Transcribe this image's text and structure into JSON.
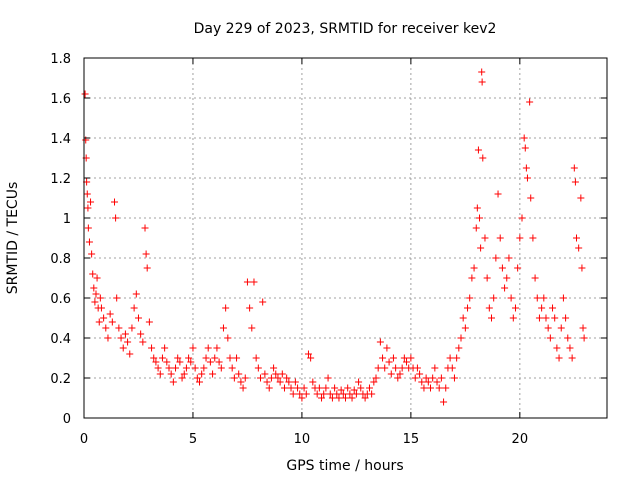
{
  "chart_data": {
    "type": "scatter",
    "title": "Day 229 of 2023, SRMTID for receiver kev2",
    "xlabel": "GPS time / hours",
    "ylabel": "SRMTID / TECUs",
    "xlim": [
      0,
      24
    ],
    "ylim": [
      0,
      1.8
    ],
    "xticks": [
      0,
      5,
      10,
      15,
      20
    ],
    "xtick_labels": [
      "0",
      "5",
      "10",
      "15",
      "20"
    ],
    "yticks": [
      0,
      0.2,
      0.4,
      0.6,
      0.8,
      1.0,
      1.2,
      1.4,
      1.6,
      1.8
    ],
    "ytick_labels": [
      "0",
      "0.2",
      "0.4",
      "0.6",
      "0.8",
      "1",
      "1.2",
      "1.4",
      "1.6",
      "1.8"
    ],
    "grid": true,
    "marker": "+",
    "color": "#ff0000",
    "series": [
      {
        "name": "kev2",
        "points": [
          [
            0.05,
            1.62
          ],
          [
            0.08,
            1.39
          ],
          [
            0.1,
            1.3
          ],
          [
            0.12,
            1.18
          ],
          [
            0.15,
            1.12
          ],
          [
            0.18,
            1.05
          ],
          [
            0.2,
            0.95
          ],
          [
            0.25,
            0.88
          ],
          [
            0.3,
            1.08
          ],
          [
            0.35,
            0.82
          ],
          [
            0.4,
            0.72
          ],
          [
            0.45,
            0.65
          ],
          [
            0.5,
            0.58
          ],
          [
            0.55,
            0.62
          ],
          [
            0.6,
            0.7
          ],
          [
            0.65,
            0.55
          ],
          [
            0.7,
            0.48
          ],
          [
            0.75,
            0.6
          ],
          [
            0.8,
            0.55
          ],
          [
            0.9,
            0.5
          ],
          [
            1.0,
            0.45
          ],
          [
            1.1,
            0.4
          ],
          [
            1.2,
            0.52
          ],
          [
            1.3,
            0.48
          ],
          [
            1.4,
            1.08
          ],
          [
            1.45,
            1.0
          ],
          [
            1.5,
            0.6
          ],
          [
            1.6,
            0.45
          ],
          [
            1.7,
            0.4
          ],
          [
            1.8,
            0.35
          ],
          [
            1.9,
            0.42
          ],
          [
            2.0,
            0.38
          ],
          [
            2.1,
            0.32
          ],
          [
            2.2,
            0.45
          ],
          [
            2.3,
            0.55
          ],
          [
            2.4,
            0.62
          ],
          [
            2.5,
            0.5
          ],
          [
            2.6,
            0.42
          ],
          [
            2.7,
            0.38
          ],
          [
            2.8,
            0.95
          ],
          [
            2.85,
            0.82
          ],
          [
            2.9,
            0.75
          ],
          [
            3.0,
            0.48
          ],
          [
            3.1,
            0.35
          ],
          [
            3.2,
            0.3
          ],
          [
            3.3,
            0.28
          ],
          [
            3.4,
            0.25
          ],
          [
            3.5,
            0.22
          ],
          [
            3.6,
            0.3
          ],
          [
            3.7,
            0.35
          ],
          [
            3.8,
            0.28
          ],
          [
            3.9,
            0.25
          ],
          [
            4.0,
            0.22
          ],
          [
            4.1,
            0.18
          ],
          [
            4.2,
            0.25
          ],
          [
            4.3,
            0.3
          ],
          [
            4.4,
            0.28
          ],
          [
            4.5,
            0.2
          ],
          [
            4.6,
            0.22
          ],
          [
            4.7,
            0.25
          ],
          [
            4.8,
            0.3
          ],
          [
            4.9,
            0.28
          ],
          [
            5.0,
            0.35
          ],
          [
            5.1,
            0.25
          ],
          [
            5.2,
            0.2
          ],
          [
            5.3,
            0.18
          ],
          [
            5.4,
            0.22
          ],
          [
            5.5,
            0.25
          ],
          [
            5.6,
            0.3
          ],
          [
            5.7,
            0.35
          ],
          [
            5.8,
            0.28
          ],
          [
            5.9,
            0.22
          ],
          [
            6.0,
            0.3
          ],
          [
            6.1,
            0.35
          ],
          [
            6.2,
            0.28
          ],
          [
            6.3,
            0.25
          ],
          [
            6.4,
            0.45
          ],
          [
            6.5,
            0.55
          ],
          [
            6.6,
            0.4
          ],
          [
            6.7,
            0.3
          ],
          [
            6.8,
            0.25
          ],
          [
            6.9,
            0.2
          ],
          [
            7.0,
            0.3
          ],
          [
            7.1,
            0.22
          ],
          [
            7.2,
            0.18
          ],
          [
            7.3,
            0.15
          ],
          [
            7.4,
            0.2
          ],
          [
            7.5,
            0.68
          ],
          [
            7.6,
            0.55
          ],
          [
            7.7,
            0.45
          ],
          [
            7.8,
            0.68
          ],
          [
            7.9,
            0.3
          ],
          [
            8.0,
            0.25
          ],
          [
            8.1,
            0.2
          ],
          [
            8.2,
            0.58
          ],
          [
            8.3,
            0.22
          ],
          [
            8.4,
            0.18
          ],
          [
            8.5,
            0.15
          ],
          [
            8.6,
            0.2
          ],
          [
            8.7,
            0.25
          ],
          [
            8.8,
            0.22
          ],
          [
            8.9,
            0.2
          ],
          [
            9.0,
            0.18
          ],
          [
            9.1,
            0.22
          ],
          [
            9.2,
            0.15
          ],
          [
            9.3,
            0.2
          ],
          [
            9.4,
            0.18
          ],
          [
            9.5,
            0.15
          ],
          [
            9.6,
            0.12
          ],
          [
            9.7,
            0.18
          ],
          [
            9.8,
            0.15
          ],
          [
            9.9,
            0.12
          ],
          [
            10.0,
            0.1
          ],
          [
            10.1,
            0.15
          ],
          [
            10.2,
            0.12
          ],
          [
            10.3,
            0.32
          ],
          [
            10.4,
            0.3
          ],
          [
            10.5,
            0.18
          ],
          [
            10.6,
            0.15
          ],
          [
            10.7,
            0.12
          ],
          [
            10.8,
            0.15
          ],
          [
            10.9,
            0.1
          ],
          [
            11.0,
            0.12
          ],
          [
            11.1,
            0.15
          ],
          [
            11.2,
            0.2
          ],
          [
            11.3,
            0.12
          ],
          [
            11.4,
            0.1
          ],
          [
            11.5,
            0.15
          ],
          [
            11.6,
            0.12
          ],
          [
            11.7,
            0.1
          ],
          [
            11.8,
            0.14
          ],
          [
            11.9,
            0.12
          ],
          [
            12.0,
            0.1
          ],
          [
            12.1,
            0.15
          ],
          [
            12.2,
            0.12
          ],
          [
            12.3,
            0.1
          ],
          [
            12.4,
            0.14
          ],
          [
            12.5,
            0.12
          ],
          [
            12.6,
            0.18
          ],
          [
            12.7,
            0.15
          ],
          [
            12.8,
            0.12
          ],
          [
            12.9,
            0.1
          ],
          [
            13.0,
            0.12
          ],
          [
            13.1,
            0.15
          ],
          [
            13.2,
            0.12
          ],
          [
            13.3,
            0.18
          ],
          [
            13.4,
            0.2
          ],
          [
            13.5,
            0.25
          ],
          [
            13.6,
            0.38
          ],
          [
            13.7,
            0.3
          ],
          [
            13.8,
            0.25
          ],
          [
            13.9,
            0.35
          ],
          [
            14.0,
            0.28
          ],
          [
            14.1,
            0.22
          ],
          [
            14.2,
            0.3
          ],
          [
            14.3,
            0.25
          ],
          [
            14.4,
            0.2
          ],
          [
            14.5,
            0.22
          ],
          [
            14.6,
            0.25
          ],
          [
            14.7,
            0.3
          ],
          [
            14.8,
            0.28
          ],
          [
            14.9,
            0.25
          ],
          [
            15.0,
            0.3
          ],
          [
            15.1,
            0.25
          ],
          [
            15.2,
            0.2
          ],
          [
            15.3,
            0.25
          ],
          [
            15.4,
            0.22
          ],
          [
            15.5,
            0.18
          ],
          [
            15.6,
            0.15
          ],
          [
            15.7,
            0.2
          ],
          [
            15.8,
            0.18
          ],
          [
            15.9,
            0.15
          ],
          [
            16.0,
            0.2
          ],
          [
            16.1,
            0.25
          ],
          [
            16.2,
            0.18
          ],
          [
            16.3,
            0.15
          ],
          [
            16.4,
            0.2
          ],
          [
            16.5,
            0.08
          ],
          [
            16.6,
            0.15
          ],
          [
            16.7,
            0.25
          ],
          [
            16.8,
            0.3
          ],
          [
            16.9,
            0.25
          ],
          [
            17.0,
            0.2
          ],
          [
            17.1,
            0.3
          ],
          [
            17.2,
            0.35
          ],
          [
            17.3,
            0.4
          ],
          [
            17.4,
            0.5
          ],
          [
            17.5,
            0.45
          ],
          [
            17.6,
            0.55
          ],
          [
            17.7,
            0.6
          ],
          [
            17.8,
            0.7
          ],
          [
            17.9,
            0.75
          ],
          [
            18.0,
            0.95
          ],
          [
            18.05,
            1.05
          ],
          [
            18.1,
            1.34
          ],
          [
            18.15,
            1.0
          ],
          [
            18.2,
            0.85
          ],
          [
            18.25,
            1.73
          ],
          [
            18.27,
            1.68
          ],
          [
            18.3,
            1.3
          ],
          [
            18.4,
            0.9
          ],
          [
            18.5,
            0.7
          ],
          [
            18.6,
            0.55
          ],
          [
            18.7,
            0.5
          ],
          [
            18.8,
            0.6
          ],
          [
            18.9,
            0.8
          ],
          [
            19.0,
            1.12
          ],
          [
            19.1,
            0.9
          ],
          [
            19.2,
            0.75
          ],
          [
            19.3,
            0.65
          ],
          [
            19.4,
            0.7
          ],
          [
            19.5,
            0.8
          ],
          [
            19.6,
            0.6
          ],
          [
            19.7,
            0.5
          ],
          [
            19.8,
            0.55
          ],
          [
            19.9,
            0.75
          ],
          [
            20.0,
            0.9
          ],
          [
            20.1,
            1.0
          ],
          [
            20.2,
            1.4
          ],
          [
            20.25,
            1.35
          ],
          [
            20.3,
            1.25
          ],
          [
            20.35,
            1.2
          ],
          [
            20.45,
            1.58
          ],
          [
            20.5,
            1.1
          ],
          [
            20.6,
            0.9
          ],
          [
            20.7,
            0.7
          ],
          [
            20.8,
            0.6
          ],
          [
            20.9,
            0.5
          ],
          [
            21.0,
            0.55
          ],
          [
            21.1,
            0.6
          ],
          [
            21.2,
            0.5
          ],
          [
            21.3,
            0.45
          ],
          [
            21.4,
            0.4
          ],
          [
            21.5,
            0.55
          ],
          [
            21.6,
            0.5
          ],
          [
            21.7,
            0.35
          ],
          [
            21.8,
            0.3
          ],
          [
            21.9,
            0.45
          ],
          [
            22.0,
            0.6
          ],
          [
            22.1,
            0.5
          ],
          [
            22.2,
            0.4
          ],
          [
            22.3,
            0.35
          ],
          [
            22.4,
            0.3
          ],
          [
            22.5,
            1.25
          ],
          [
            22.55,
            1.18
          ],
          [
            22.6,
            0.9
          ],
          [
            22.7,
            0.85
          ],
          [
            22.8,
            1.1
          ],
          [
            22.85,
            0.75
          ],
          [
            22.9,
            0.45
          ],
          [
            22.95,
            0.4
          ]
        ]
      }
    ]
  }
}
